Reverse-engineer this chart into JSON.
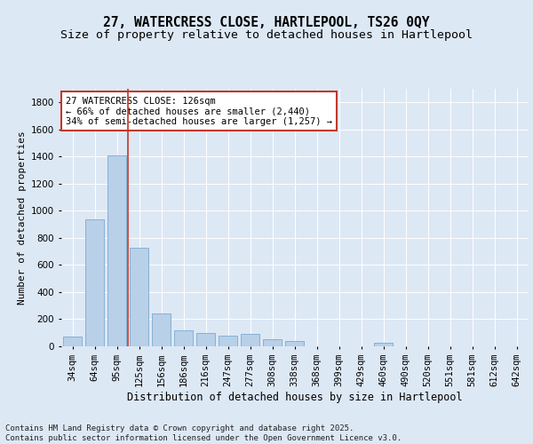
{
  "title1": "27, WATERCRESS CLOSE, HARTLEPOOL, TS26 0QY",
  "title2": "Size of property relative to detached houses in Hartlepool",
  "xlabel": "Distribution of detached houses by size in Hartlepool",
  "ylabel": "Number of detached properties",
  "categories": [
    "34sqm",
    "64sqm",
    "95sqm",
    "125sqm",
    "156sqm",
    "186sqm",
    "216sqm",
    "247sqm",
    "277sqm",
    "308sqm",
    "338sqm",
    "368sqm",
    "399sqm",
    "429sqm",
    "460sqm",
    "490sqm",
    "520sqm",
    "551sqm",
    "581sqm",
    "612sqm",
    "642sqm"
  ],
  "values": [
    75,
    940,
    1410,
    730,
    240,
    115,
    100,
    80,
    95,
    50,
    38,
    0,
    0,
    0,
    25,
    0,
    0,
    0,
    0,
    0,
    0
  ],
  "bar_color": "#b8d0e8",
  "bar_edge_color": "#7aaacf",
  "vline_color": "#c0392b",
  "vline_x_index": 2.5,
  "annotation_text": "27 WATERCRESS CLOSE: 126sqm\n← 66% of detached houses are smaller (2,440)\n34% of semi-detached houses are larger (1,257) →",
  "annotation_box_color": "#ffffff",
  "annotation_box_edge_color": "#c0392b",
  "annotation_fontsize": 7.5,
  "ylim": [
    0,
    1900
  ],
  "yticks": [
    0,
    200,
    400,
    600,
    800,
    1000,
    1200,
    1400,
    1600,
    1800
  ],
  "title1_fontsize": 10.5,
  "title2_fontsize": 9.5,
  "xlabel_fontsize": 8.5,
  "ylabel_fontsize": 8.0,
  "tick_fontsize": 7.5,
  "footer_text": "Contains HM Land Registry data © Crown copyright and database right 2025.\nContains public sector information licensed under the Open Government Licence v3.0.",
  "footer_fontsize": 6.5,
  "bg_color": "#dde8f5",
  "plot_bg_color": "#dde8f5",
  "grid_color": "#ffffff"
}
